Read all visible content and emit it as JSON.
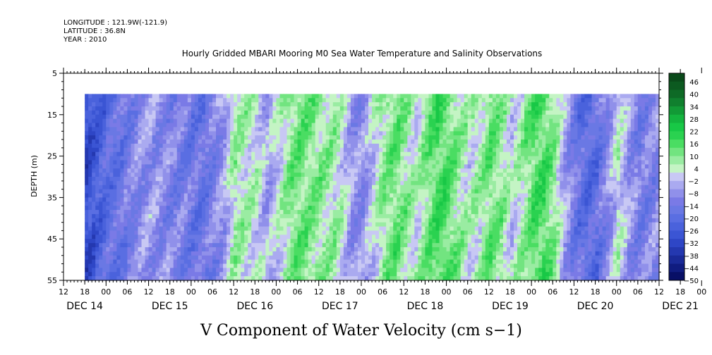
{
  "header": {
    "longitude": "LONGITUDE : 121.9W(-121.9)",
    "latitude": "LATITUDE : 36.8N",
    "year": "YEAR : 2010"
  },
  "chart_data": {
    "type": "heatmap",
    "title": "Hourly Gridded MBARI Mooring M0 Sea Water Temperature and Salinity Observations",
    "xlabel": "V Component of Water Velocity (cm s−1)",
    "ylabel": "DEPTH (m)",
    "ylim": [
      5,
      55
    ],
    "y_ticks": [
      "5",
      "15",
      "25",
      "35",
      "45",
      "55"
    ],
    "x_hour_ticks": [
      "12",
      "18",
      "00",
      "06",
      "12",
      "18",
      "00",
      "06",
      "12",
      "18",
      "00",
      "06",
      "12",
      "18",
      "00",
      "06",
      "12",
      "18",
      "00",
      "06",
      "12",
      "18",
      "00",
      "06",
      "12",
      "18",
      "00",
      "06",
      "12",
      "18",
      "00",
      "06",
      "12",
      "18",
      "00",
      "06",
      "12"
    ],
    "x_dates": [
      "DEC 14",
      "DEC 15",
      "DEC 16",
      "DEC 17",
      "DEC 18",
      "DEC 19",
      "DEC 20",
      "DEC 21"
    ],
    "x_range_hours": [
      0,
      168
    ],
    "data_start_hour": 6,
    "data_depth_range": [
      10,
      55
    ],
    "colorbar_ticks": [
      "46",
      "40",
      "34",
      "28",
      "22",
      "16",
      "10",
      "4",
      "−2",
      "−8",
      "−14",
      "−20",
      "−26",
      "−32",
      "−38",
      "−44",
      "−50"
    ],
    "colorbar_colors": [
      "#0a4a1a",
      "#0c5a20",
      "#0e6a26",
      "#10802e",
      "#129a36",
      "#14b43e",
      "#18c846",
      "#2ad250",
      "#4add62",
      "#72e480",
      "#9aeca2",
      "#c4f4c4",
      "#c8c8f4",
      "#aaaaf0",
      "#9090ea",
      "#7a7ae6",
      "#6a78e4",
      "#5a6ee2",
      "#4a62dc",
      "#3b55d4",
      "#2e46c6",
      "#2438b0",
      "#1a2a98",
      "#101c80",
      "#080f66"
    ],
    "v_profile_by_hour": [
      [
        0,
        -30
      ],
      [
        6,
        -30
      ],
      [
        9,
        -24
      ],
      [
        12,
        -18
      ],
      [
        15,
        -16
      ],
      [
        18,
        -12
      ],
      [
        21,
        -8
      ],
      [
        24,
        -6
      ],
      [
        27,
        -8
      ],
      [
        30,
        -10
      ],
      [
        33,
        -12
      ],
      [
        36,
        -14
      ],
      [
        39,
        -16
      ],
      [
        42,
        -10
      ],
      [
        45,
        -4
      ],
      [
        48,
        8
      ],
      [
        51,
        6
      ],
      [
        54,
        4
      ],
      [
        57,
        -4
      ],
      [
        60,
        2
      ],
      [
        63,
        10
      ],
      [
        66,
        14
      ],
      [
        69,
        12
      ],
      [
        72,
        10
      ],
      [
        75,
        8
      ],
      [
        78,
        4
      ],
      [
        81,
        -6
      ],
      [
        84,
        -8
      ],
      [
        87,
        2
      ],
      [
        90,
        10
      ],
      [
        93,
        14
      ],
      [
        96,
        10
      ],
      [
        99,
        4
      ],
      [
        102,
        12
      ],
      [
        105,
        18
      ],
      [
        108,
        16
      ],
      [
        111,
        10
      ],
      [
        114,
        4
      ],
      [
        117,
        8
      ],
      [
        120,
        14
      ],
      [
        123,
        10
      ],
      [
        126,
        2
      ],
      [
        129,
        8
      ],
      [
        132,
        16
      ],
      [
        135,
        18
      ],
      [
        138,
        10
      ],
      [
        141,
        -4
      ],
      [
        144,
        -14
      ],
      [
        147,
        -20
      ],
      [
        150,
        -18
      ],
      [
        153,
        -8
      ],
      [
        156,
        4
      ],
      [
        159,
        -6
      ],
      [
        162,
        -12
      ],
      [
        165,
        -10
      ],
      [
        168,
        -8
      ]
    ]
  }
}
